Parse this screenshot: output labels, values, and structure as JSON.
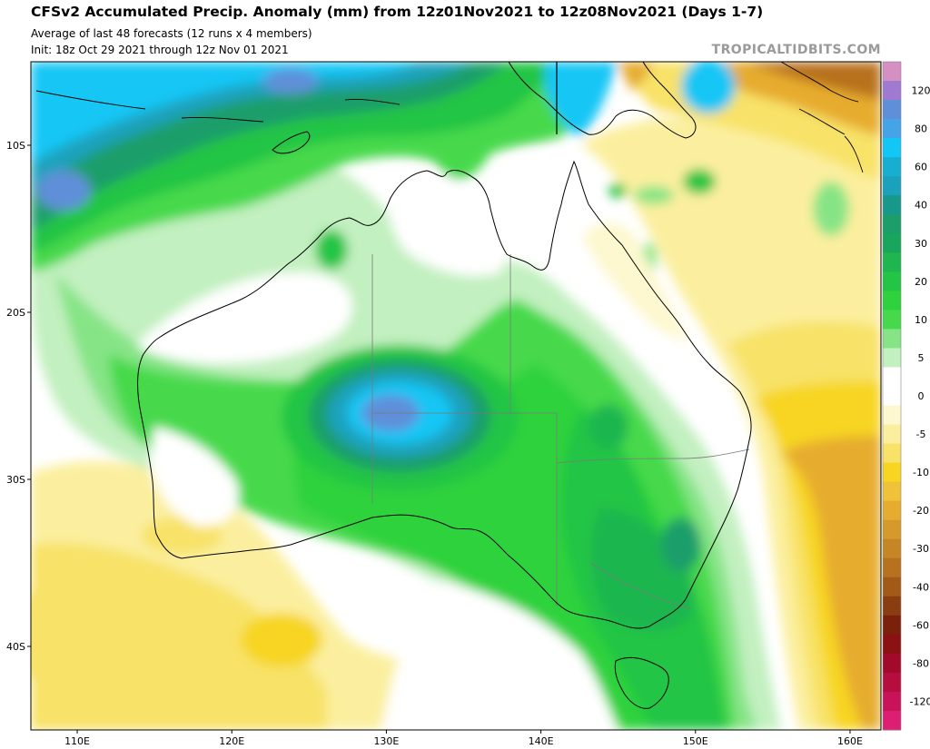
{
  "header": {
    "title": "CFSv2 Accumulated Precip. Anomaly (mm) from 12z01Nov2021 to 12z08Nov2021 (Days 1-7)",
    "subtitle": "Average of last 48 forecasts (12 runs x 4 members)",
    "init": "Init: 18z Oct 29 2021 through 12z Nov 01 2021",
    "credit": "TROPICALTIDBITS.COM"
  },
  "map": {
    "lon_range": [
      107,
      162
    ],
    "lat_range": [
      -45,
      -5
    ],
    "lon_ticks": [
      {
        "value": 110,
        "label": "110E"
      },
      {
        "value": 120,
        "label": "120E"
      },
      {
        "value": 130,
        "label": "130E"
      },
      {
        "value": 140,
        "label": "140E"
      },
      {
        "value": 150,
        "label": "150E"
      },
      {
        "value": 160,
        "label": "160E"
      }
    ],
    "lat_ticks": [
      {
        "value": -10,
        "label": "10S"
      },
      {
        "value": -20,
        "label": "20S"
      },
      {
        "value": -30,
        "label": "30S"
      },
      {
        "value": -40,
        "label": "40S"
      }
    ]
  },
  "colorbar": {
    "levels": [
      {
        "label": "",
        "color": "#d68fc3"
      },
      {
        "label": "120",
        "color": "#a07ad0"
      },
      {
        "label": "",
        "color": "#5f8fd9"
      },
      {
        "label": "80",
        "color": "#45a4e8"
      },
      {
        "label": "",
        "color": "#12c6f5"
      },
      {
        "label": "60",
        "color": "#16aed1"
      },
      {
        "label": "",
        "color": "#1aa2bc"
      },
      {
        "label": "40",
        "color": "#16998b"
      },
      {
        "label": "",
        "color": "#1b9e6a"
      },
      {
        "label": "30",
        "color": "#17a65c"
      },
      {
        "label": "",
        "color": "#1db64f"
      },
      {
        "label": "20",
        "color": "#22c545"
      },
      {
        "label": "",
        "color": "#2dd23d"
      },
      {
        "label": "10",
        "color": "#47d94c"
      },
      {
        "label": "",
        "color": "#86e486"
      },
      {
        "label": "5",
        "color": "#c2f0c0"
      },
      {
        "label": "",
        "color": "#ffffff"
      },
      {
        "label": "0",
        "color": "#ffffff"
      },
      {
        "label": "",
        "color": "#fdf8cf"
      },
      {
        "label": "-5",
        "color": "#fbef9f"
      },
      {
        "label": "",
        "color": "#f8e268"
      },
      {
        "label": "-10",
        "color": "#f7d520"
      },
      {
        "label": "",
        "color": "#f0c23a"
      },
      {
        "label": "-20",
        "color": "#e6ac2f"
      },
      {
        "label": "",
        "color": "#d69a2b"
      },
      {
        "label": "-30",
        "color": "#c78625"
      },
      {
        "label": "",
        "color": "#b8711f"
      },
      {
        "label": "-40",
        "color": "#a45a17"
      },
      {
        "label": "",
        "color": "#8a3d10"
      },
      {
        "label": "-60",
        "color": "#7a200b"
      },
      {
        "label": "",
        "color": "#8c1112"
      },
      {
        "label": "-80",
        "color": "#a10a2a"
      },
      {
        "label": "",
        "color": "#b40d3e"
      },
      {
        "label": "-120",
        "color": "#c8125a"
      },
      {
        "label": "",
        "color": "#dc1f73"
      }
    ]
  }
}
